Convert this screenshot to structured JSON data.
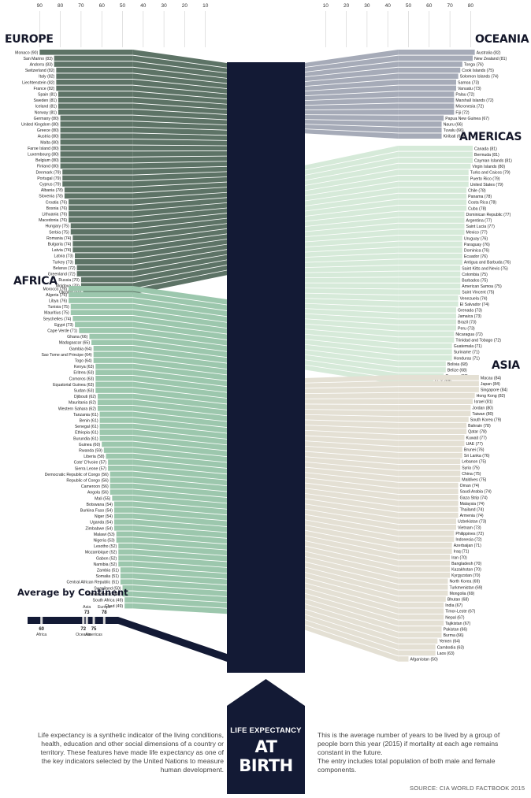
{
  "title": {
    "line1": "LIFE EXPECTANCY",
    "line2": "AT BIRTH"
  },
  "description_left": "Life expectancy is a synthetic indicator of the living conditions, health, education and other social dimensions of a country or territory. These features have made life expectancy as one of the key indicators selected by the United Nations to measure human development.",
  "description_right_1": "This is the average number of years to be lived by a group of people born this year (2015) if mortality at each age remains constant in the future.",
  "description_right_2": "The entry includes total population of both male and female components.",
  "source": "SOURCE: CIA WORLD FACTBOOK 2015",
  "colors": {
    "europe": "#5d7366",
    "africa": "#9cc7ad",
    "oceania": "#a6abb8",
    "americas": "#d6ead9",
    "asia": "#e4e0d4",
    "center": "#131a35"
  },
  "chart_data": {
    "type": "bar",
    "scale": {
      "min": 0,
      "max": 90
    },
    "axis_left_ticks": [
      90,
      80,
      70,
      60,
      50,
      40,
      30,
      20,
      10
    ],
    "axis_right_ticks": [
      10,
      20,
      30,
      40,
      50,
      60,
      70,
      80
    ],
    "continents": [
      {
        "name": "EUROPE",
        "side": "left",
        "color": "#5d7366",
        "countries": [
          [
            "Monaco",
            90
          ],
          [
            "San Marino",
            83
          ],
          [
            "Andorra",
            83
          ],
          [
            "Switzerland",
            82
          ],
          [
            "Italy",
            82
          ],
          [
            "Liechtenstein",
            82
          ],
          [
            "France",
            82
          ],
          [
            "Spain",
            81
          ],
          [
            "Sweden",
            81
          ],
          [
            "Iceland",
            81
          ],
          [
            "Norway",
            81
          ],
          [
            "Germany",
            80
          ],
          [
            "United Kingdom",
            80
          ],
          [
            "Greece",
            80
          ],
          [
            "Austria",
            80
          ],
          [
            "Malta",
            80
          ],
          [
            "Faroe Island",
            80
          ],
          [
            "Luxembourg",
            80
          ],
          [
            "Belgium",
            80
          ],
          [
            "Finland",
            80
          ],
          [
            "Denmark",
            79
          ],
          [
            "Portugal",
            79
          ],
          [
            "Cyprus",
            79
          ],
          [
            "Albania",
            78
          ],
          [
            "Slovenia",
            78
          ],
          [
            "Croatia",
            76
          ],
          [
            "Bosnia",
            76
          ],
          [
            "Lithuania",
            76
          ],
          [
            "Macedonia",
            76
          ],
          [
            "Hungary",
            75
          ],
          [
            "Serbia",
            75
          ],
          [
            "Romania",
            74
          ],
          [
            "Bulgaria",
            74
          ],
          [
            "Latvia",
            74
          ],
          [
            "Latvia",
            73
          ],
          [
            "Turkey",
            73
          ],
          [
            "Belarus",
            72
          ],
          [
            "Greenland",
            72
          ],
          [
            "Russia",
            70
          ],
          [
            "Moldova",
            70
          ],
          [
            "Ukraine",
            69
          ]
        ]
      },
      {
        "name": "AFRICA",
        "side": "left",
        "color": "#9cc7ad",
        "countries": [
          [
            "Morocco",
            76
          ],
          [
            "Algeria",
            76
          ],
          [
            "Libya",
            76
          ],
          [
            "Tunisia",
            75
          ],
          [
            "Mauritius",
            75
          ],
          [
            "Seychelles",
            74
          ],
          [
            "Egypt",
            73
          ],
          [
            "Cape Verde",
            71
          ],
          [
            "Ghana",
            66
          ],
          [
            "Madagascar",
            65
          ],
          [
            "Gambia",
            64
          ],
          [
            "Sao Tome and Principe",
            64
          ],
          [
            "Togo",
            64
          ],
          [
            "Kenya",
            63
          ],
          [
            "Eritrea",
            63
          ],
          [
            "Comoros",
            63
          ],
          [
            "Equatorial Guinea",
            63
          ],
          [
            "Sudan",
            63
          ],
          [
            "Djibouti",
            62
          ],
          [
            "Mauritania",
            62
          ],
          [
            "Western Sahara",
            62
          ],
          [
            "Tanzania",
            61
          ],
          [
            "Benin",
            61
          ],
          [
            "Senegal",
            61
          ],
          [
            "Ethiopia",
            61
          ],
          [
            "Burundia",
            61
          ],
          [
            "Guinea",
            60
          ],
          [
            "Rwanda",
            59
          ],
          [
            "Liberia",
            58
          ],
          [
            "Cote' D'Ivoire",
            57
          ],
          [
            "Sierra Leone",
            57
          ],
          [
            "Democratic Republic of Congo",
            56
          ],
          [
            "Republic of Congo",
            56
          ],
          [
            "Cameroon",
            56
          ],
          [
            "Angola",
            56
          ],
          [
            "Mali",
            55
          ],
          [
            "Botswana",
            54
          ],
          [
            "Burkina Faso",
            54
          ],
          [
            "Niger",
            54
          ],
          [
            "Uganda",
            54
          ],
          [
            "Zimbabwe",
            54
          ],
          [
            "Malawi",
            53
          ],
          [
            "Nigeria",
            53
          ],
          [
            "Lesotho",
            52
          ],
          [
            "Mozambique",
            52
          ],
          [
            "Gabon",
            52
          ],
          [
            "Namibia",
            52
          ],
          [
            "Zambia",
            51
          ],
          [
            "Somalia",
            51
          ],
          [
            "Central African Republic",
            51
          ],
          [
            "Swaziland",
            50
          ],
          [
            "Guinea-Bissau",
            50
          ],
          [
            "South Africa",
            49
          ],
          [
            "Chad",
            49
          ]
        ]
      },
      {
        "name": "OCEANIA",
        "side": "right",
        "color": "#a6abb8",
        "countries": [
          [
            "Australia",
            82
          ],
          [
            "New Zealand",
            81
          ],
          [
            "Tonga",
            76
          ],
          [
            "Cook Islands",
            75
          ],
          [
            "Solomon Islands",
            74
          ],
          [
            "Samoa",
            73
          ],
          [
            "Vanuatu",
            73
          ],
          [
            "Palau",
            72
          ],
          [
            "Marshall Islands",
            72
          ],
          [
            "Micronesia",
            72
          ],
          [
            "Fiji",
            72
          ],
          [
            "Papua New Guinea",
            67
          ],
          [
            "Nauru",
            66
          ],
          [
            "Tuvalu",
            66
          ],
          [
            "Kiribati",
            66
          ]
        ]
      },
      {
        "name": "AMERICAS",
        "side": "right",
        "color": "#d6ead9",
        "countries": [
          [
            "Canada",
            81
          ],
          [
            "Bermuda",
            81
          ],
          [
            "Cayman Islands",
            81
          ],
          [
            "Virgin Islands",
            80
          ],
          [
            "Turks and Caicos",
            79
          ],
          [
            "Puerto Rico",
            79
          ],
          [
            "United States",
            79
          ],
          [
            "Chile",
            78
          ],
          [
            "Panama",
            78
          ],
          [
            "Costa Rica",
            78
          ],
          [
            "Cuba",
            78
          ],
          [
            "Dominican Republic",
            77
          ],
          [
            "Argentina",
            77
          ],
          [
            "Saint Lucia",
            77
          ],
          [
            "Mexico",
            77
          ],
          [
            "Uruguay",
            76
          ],
          [
            "Paraguay",
            76
          ],
          [
            "Dominica",
            76
          ],
          [
            "Ecuador",
            76
          ],
          [
            "Antigua and Barbuda",
            76
          ],
          [
            "Saint Kitts and Nevis",
            75
          ],
          [
            "Colombia",
            75
          ],
          [
            "Barbados",
            75
          ],
          [
            "American Samoa",
            75
          ],
          [
            "Saint Vincent",
            75
          ],
          [
            "Venezuela",
            74
          ],
          [
            "El Salvador",
            74
          ],
          [
            "Grenada",
            73
          ],
          [
            "Jamaica",
            73
          ],
          [
            "Brazil",
            73
          ],
          [
            "Peru",
            73
          ],
          [
            "Nicaragua",
            72
          ],
          [
            "Trinidad and Tobago",
            72
          ],
          [
            "Guatemala",
            71
          ],
          [
            "Suriname",
            71
          ],
          [
            "Honduras",
            71
          ],
          [
            "Bolivia",
            68
          ],
          [
            "Belize",
            68
          ],
          [
            "Guyana",
            67
          ],
          [
            "Haiti",
            62
          ]
        ]
      },
      {
        "name": "ASIA",
        "side": "right",
        "color": "#e4e0d4",
        "countries": [
          [
            "Macau",
            84
          ],
          [
            "Japan",
            84
          ],
          [
            "Singapore",
            84
          ],
          [
            "Hong Kong",
            82
          ],
          [
            "Israel",
            81
          ],
          [
            "Jordan",
            80
          ],
          [
            "Taiwan",
            80
          ],
          [
            "South Korea",
            79
          ],
          [
            "Bahrain",
            78
          ],
          [
            "Qatar",
            78
          ],
          [
            "Kuwait",
            77
          ],
          [
            "UAE",
            77
          ],
          [
            "Brunei",
            76
          ],
          [
            "Sri Lanka",
            76
          ],
          [
            "Lebanon",
            75
          ],
          [
            "Syria",
            75
          ],
          [
            "China",
            75
          ],
          [
            "Maldives",
            75
          ],
          [
            "Oman",
            74
          ],
          [
            "Saudi Arabia",
            74
          ],
          [
            "Gaza Strip",
            74
          ],
          [
            "Malaysia",
            74
          ],
          [
            "Thailand",
            74
          ],
          [
            "Armenia",
            74
          ],
          [
            "Uzbekistan",
            73
          ],
          [
            "Vietnam",
            73
          ],
          [
            "Philippines",
            72
          ],
          [
            "Indonesia",
            72
          ],
          [
            "Azerbaijan",
            71
          ],
          [
            "Iraq",
            71
          ],
          [
            "Iran",
            70
          ],
          [
            "Bangladesh",
            70
          ],
          [
            "Kazakhstan",
            70
          ],
          [
            "Kyrgyzstan",
            70
          ],
          [
            "North Korea",
            69
          ],
          [
            "Turkmenistan",
            69
          ],
          [
            "Mongolia",
            69
          ],
          [
            "Bhutan",
            68
          ],
          [
            "India",
            67
          ],
          [
            "Timor-Leste",
            67
          ],
          [
            "Nepal",
            67
          ],
          [
            "Tajikistan",
            67
          ],
          [
            "Pakistan",
            66
          ],
          [
            "Burma",
            66
          ],
          [
            "Yemen",
            64
          ],
          [
            "Cambodia",
            63
          ],
          [
            "Laos",
            63
          ],
          [
            "Afganistan",
            50
          ]
        ]
      }
    ],
    "average_by_continent": {
      "title": "Average by Continent",
      "items": [
        {
          "name": "Europe",
          "value": 78,
          "position": "top"
        },
        {
          "name": "Asia",
          "value": 73,
          "position": "top"
        },
        {
          "name": "Americas",
          "value": 75,
          "position": "bottom"
        },
        {
          "name": "Oceania",
          "value": 72,
          "position": "bottom"
        },
        {
          "name": "Africa",
          "value": 60,
          "position": "bottom"
        }
      ]
    }
  }
}
